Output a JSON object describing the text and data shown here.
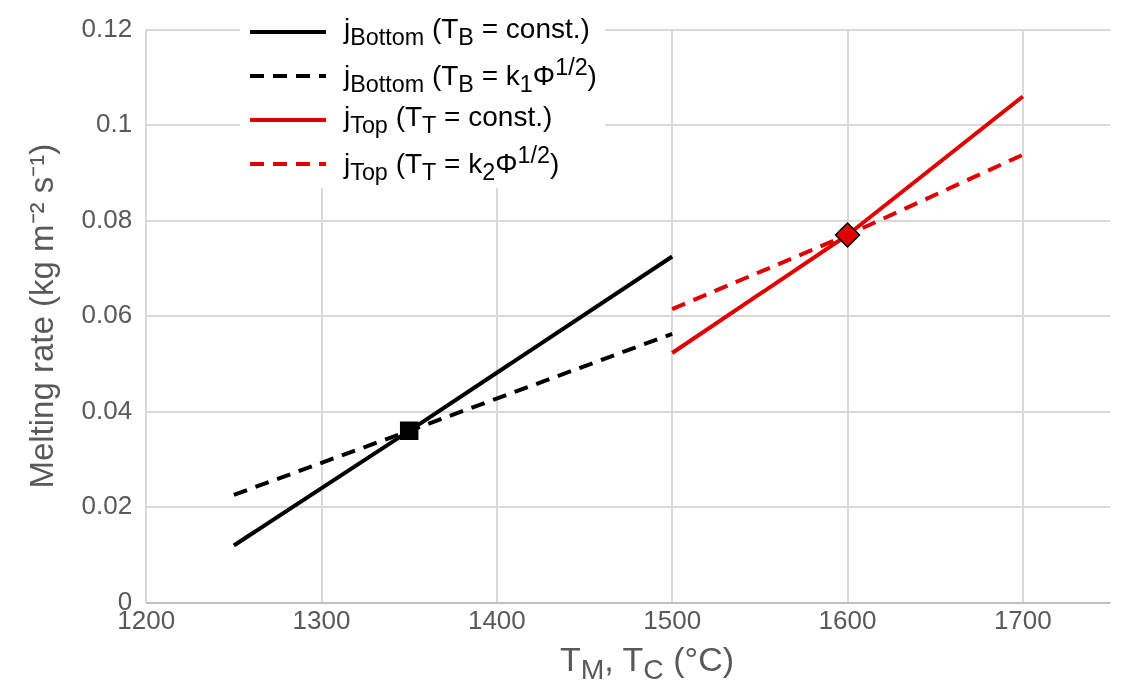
{
  "chart_data": {
    "type": "line",
    "xlabel": "T$_{M}$, T$_{C}$ (°C)",
    "ylabel": "Melting rate (kg m⁻² s⁻¹)",
    "xlim": [
      1200,
      1750
    ],
    "xticks": [
      1200,
      1300,
      1400,
      1500,
      1600,
      1700
    ],
    "ylim": [
      0,
      0.12
    ],
    "yticks": [
      0,
      0.02,
      0.04,
      0.06,
      0.08,
      0.1,
      0.12
    ],
    "grid": true,
    "legend": "top left",
    "series": [
      {
        "name": "j$_{Bottom}$ (T$_{B}$ = const.)",
        "color": "#000000",
        "line_style": "solid",
        "x": [
          1250,
          1350,
          1500
        ],
        "values": [
          0.012,
          0.036,
          0.0725
        ]
      },
      {
        "name": "j$_{Bottom}$ (T$_{B}$ = k$_{1}$Φ$^{1/2}$)",
        "color": "#000000",
        "line_style": "dashed",
        "x": [
          1250,
          1350,
          1500
        ],
        "values": [
          0.0226,
          0.036,
          0.0563
        ]
      },
      {
        "name": "j$_{Top}$ (T$_{T}$ = const.)",
        "color": "#e00000",
        "line_style": "solid",
        "x": [
          1500,
          1600,
          1700
        ],
        "values": [
          0.0523,
          0.077,
          0.106
        ]
      },
      {
        "name": "j$_{Top}$ (T$_{T}$ = k$_{2}$Φ$^{1/2}$)",
        "color": "#e00000",
        "line_style": "dashed",
        "x": [
          1500,
          1600,
          1700
        ],
        "values": [
          0.0615,
          0.077,
          0.0938
        ]
      },
      {
        "type": "scatter",
        "marker": "square",
        "color": "#000000",
        "x": [
          1350
        ],
        "values": [
          0.036
        ]
      },
      {
        "type": "scatter",
        "marker": "diamond",
        "color": "#e00000",
        "x": [
          1600
        ],
        "values": [
          0.077
        ]
      }
    ]
  }
}
